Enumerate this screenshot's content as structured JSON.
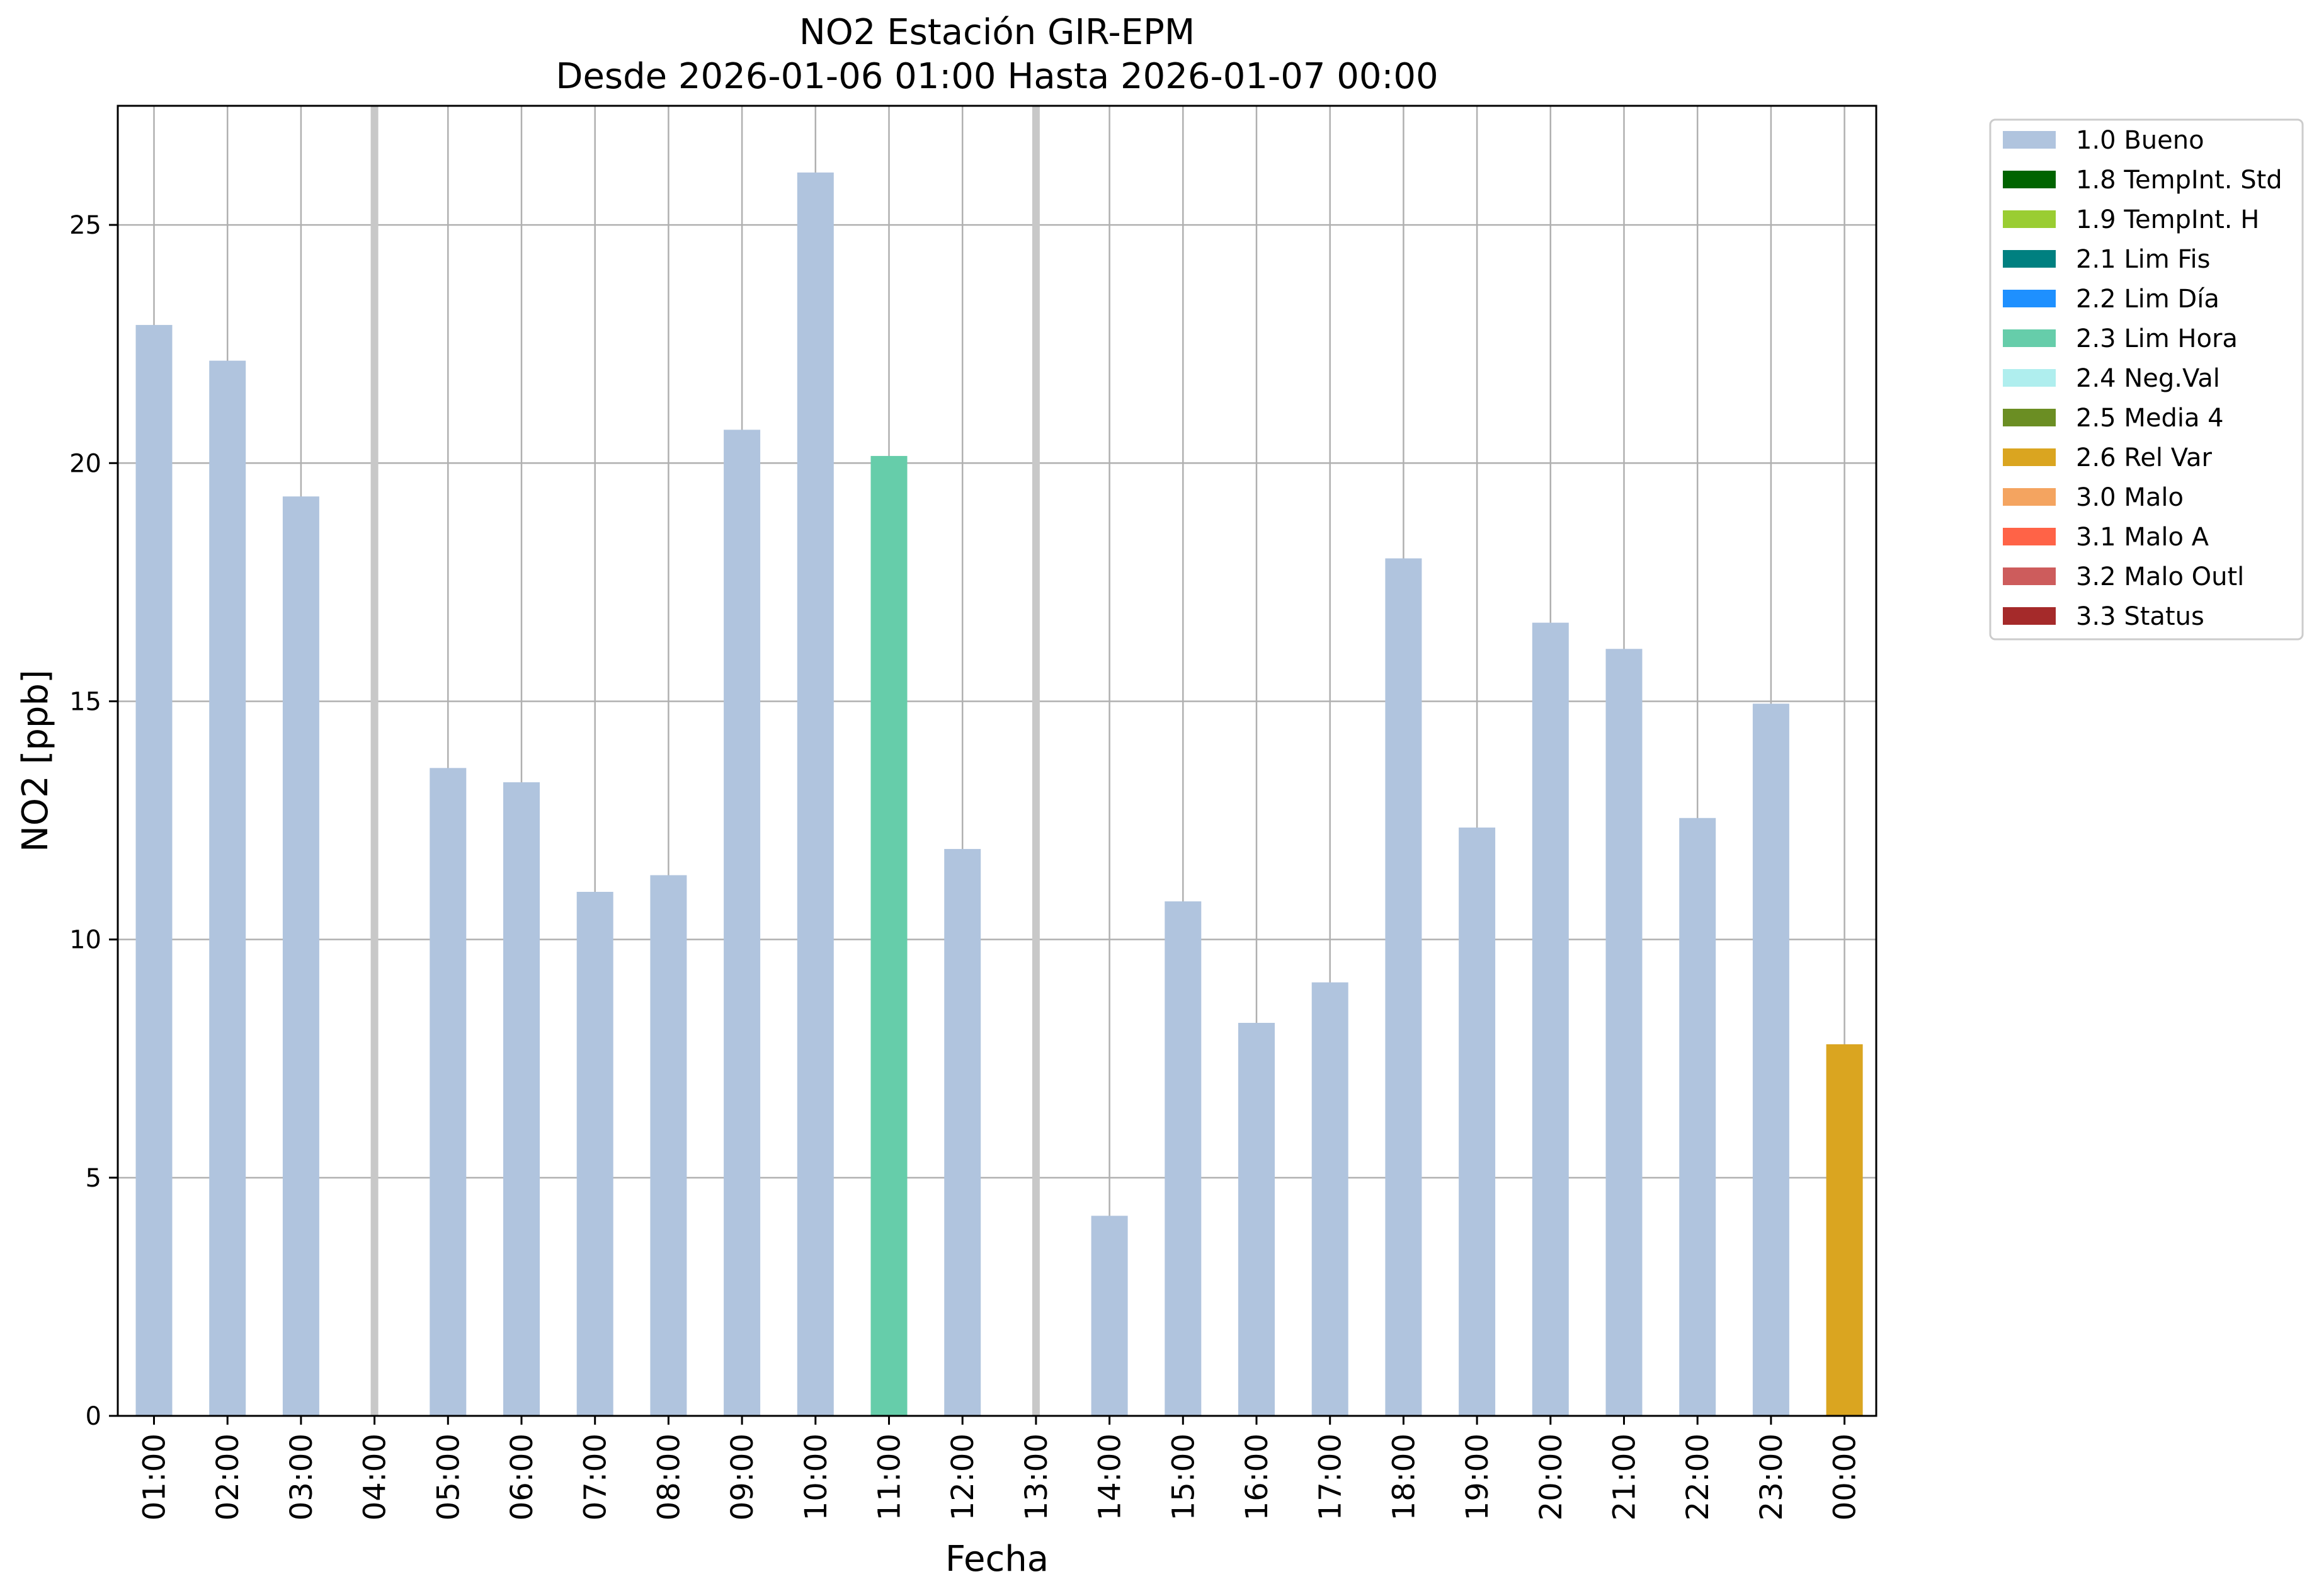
{
  "chart_data": {
    "type": "bar",
    "title": "NO2 Estación GIR-EPM",
    "subtitle": "Desde 2026-01-06 01:00 Hasta 2026-01-07 00:00",
    "xlabel": "Fecha",
    "ylabel": "NO2 [ppb]",
    "ylim": [
      0,
      27.5
    ],
    "yticks": [
      0,
      5,
      10,
      15,
      20,
      25
    ],
    "grid": true,
    "legend_position": "outside-right-top",
    "categories": [
      "01:00",
      "02:00",
      "03:00",
      "04:00",
      "05:00",
      "06:00",
      "07:00",
      "08:00",
      "09:00",
      "10:00",
      "11:00",
      "12:00",
      "13:00",
      "14:00",
      "15:00",
      "16:00",
      "17:00",
      "18:00",
      "19:00",
      "20:00",
      "21:00",
      "22:00",
      "23:00",
      "00:00"
    ],
    "values": [
      22.9,
      22.15,
      19.3,
      null,
      13.6,
      13.3,
      11.0,
      11.35,
      20.7,
      26.1,
      20.15,
      11.9,
      null,
      4.2,
      10.8,
      8.25,
      9.1,
      18.0,
      12.35,
      16.65,
      16.1,
      12.55,
      14.95,
      7.8
    ],
    "flags": [
      "1.0 Bueno",
      "1.0 Bueno",
      "1.0 Bueno",
      null,
      "1.0 Bueno",
      "1.0 Bueno",
      "1.0 Bueno",
      "1.0 Bueno",
      "1.0 Bueno",
      "1.0 Bueno",
      "2.3 Lim Hora",
      "1.0 Bueno",
      null,
      "1.0 Bueno",
      "1.0 Bueno",
      "1.0 Bueno",
      "1.0 Bueno",
      "1.0 Bueno",
      "1.0 Bueno",
      "1.0 Bueno",
      "1.0 Bueno",
      "1.0 Bueno",
      "1.0 Bueno",
      "2.6 Rel Var"
    ],
    "missing_marker_color": "#c8c8c8",
    "legend": [
      {
        "label": "1.0 Bueno",
        "color": "#b0c4de"
      },
      {
        "label": "1.8 TempInt. Std",
        "color": "#006400"
      },
      {
        "label": "1.9 TempInt. H",
        "color": "#9acd32"
      },
      {
        "label": "2.1 Lim Fis",
        "color": "#008080"
      },
      {
        "label": "2.2 Lim Día",
        "color": "#1e90ff"
      },
      {
        "label": "2.3 Lim Hora",
        "color": "#66cdaa"
      },
      {
        "label": "2.4 Neg.Val",
        "color": "#afeeee"
      },
      {
        "label": "2.5 Media 4",
        "color": "#6b8e23"
      },
      {
        "label": "2.6 Rel Var",
        "color": "#daa520"
      },
      {
        "label": "3.0 Malo",
        "color": "#f4a460"
      },
      {
        "label": "3.1 Malo A",
        "color": "#ff6347"
      },
      {
        "label": "3.2 Malo Outl",
        "color": "#cd5c5c"
      },
      {
        "label": "3.3 Status",
        "color": "#a52a2a"
      }
    ]
  }
}
